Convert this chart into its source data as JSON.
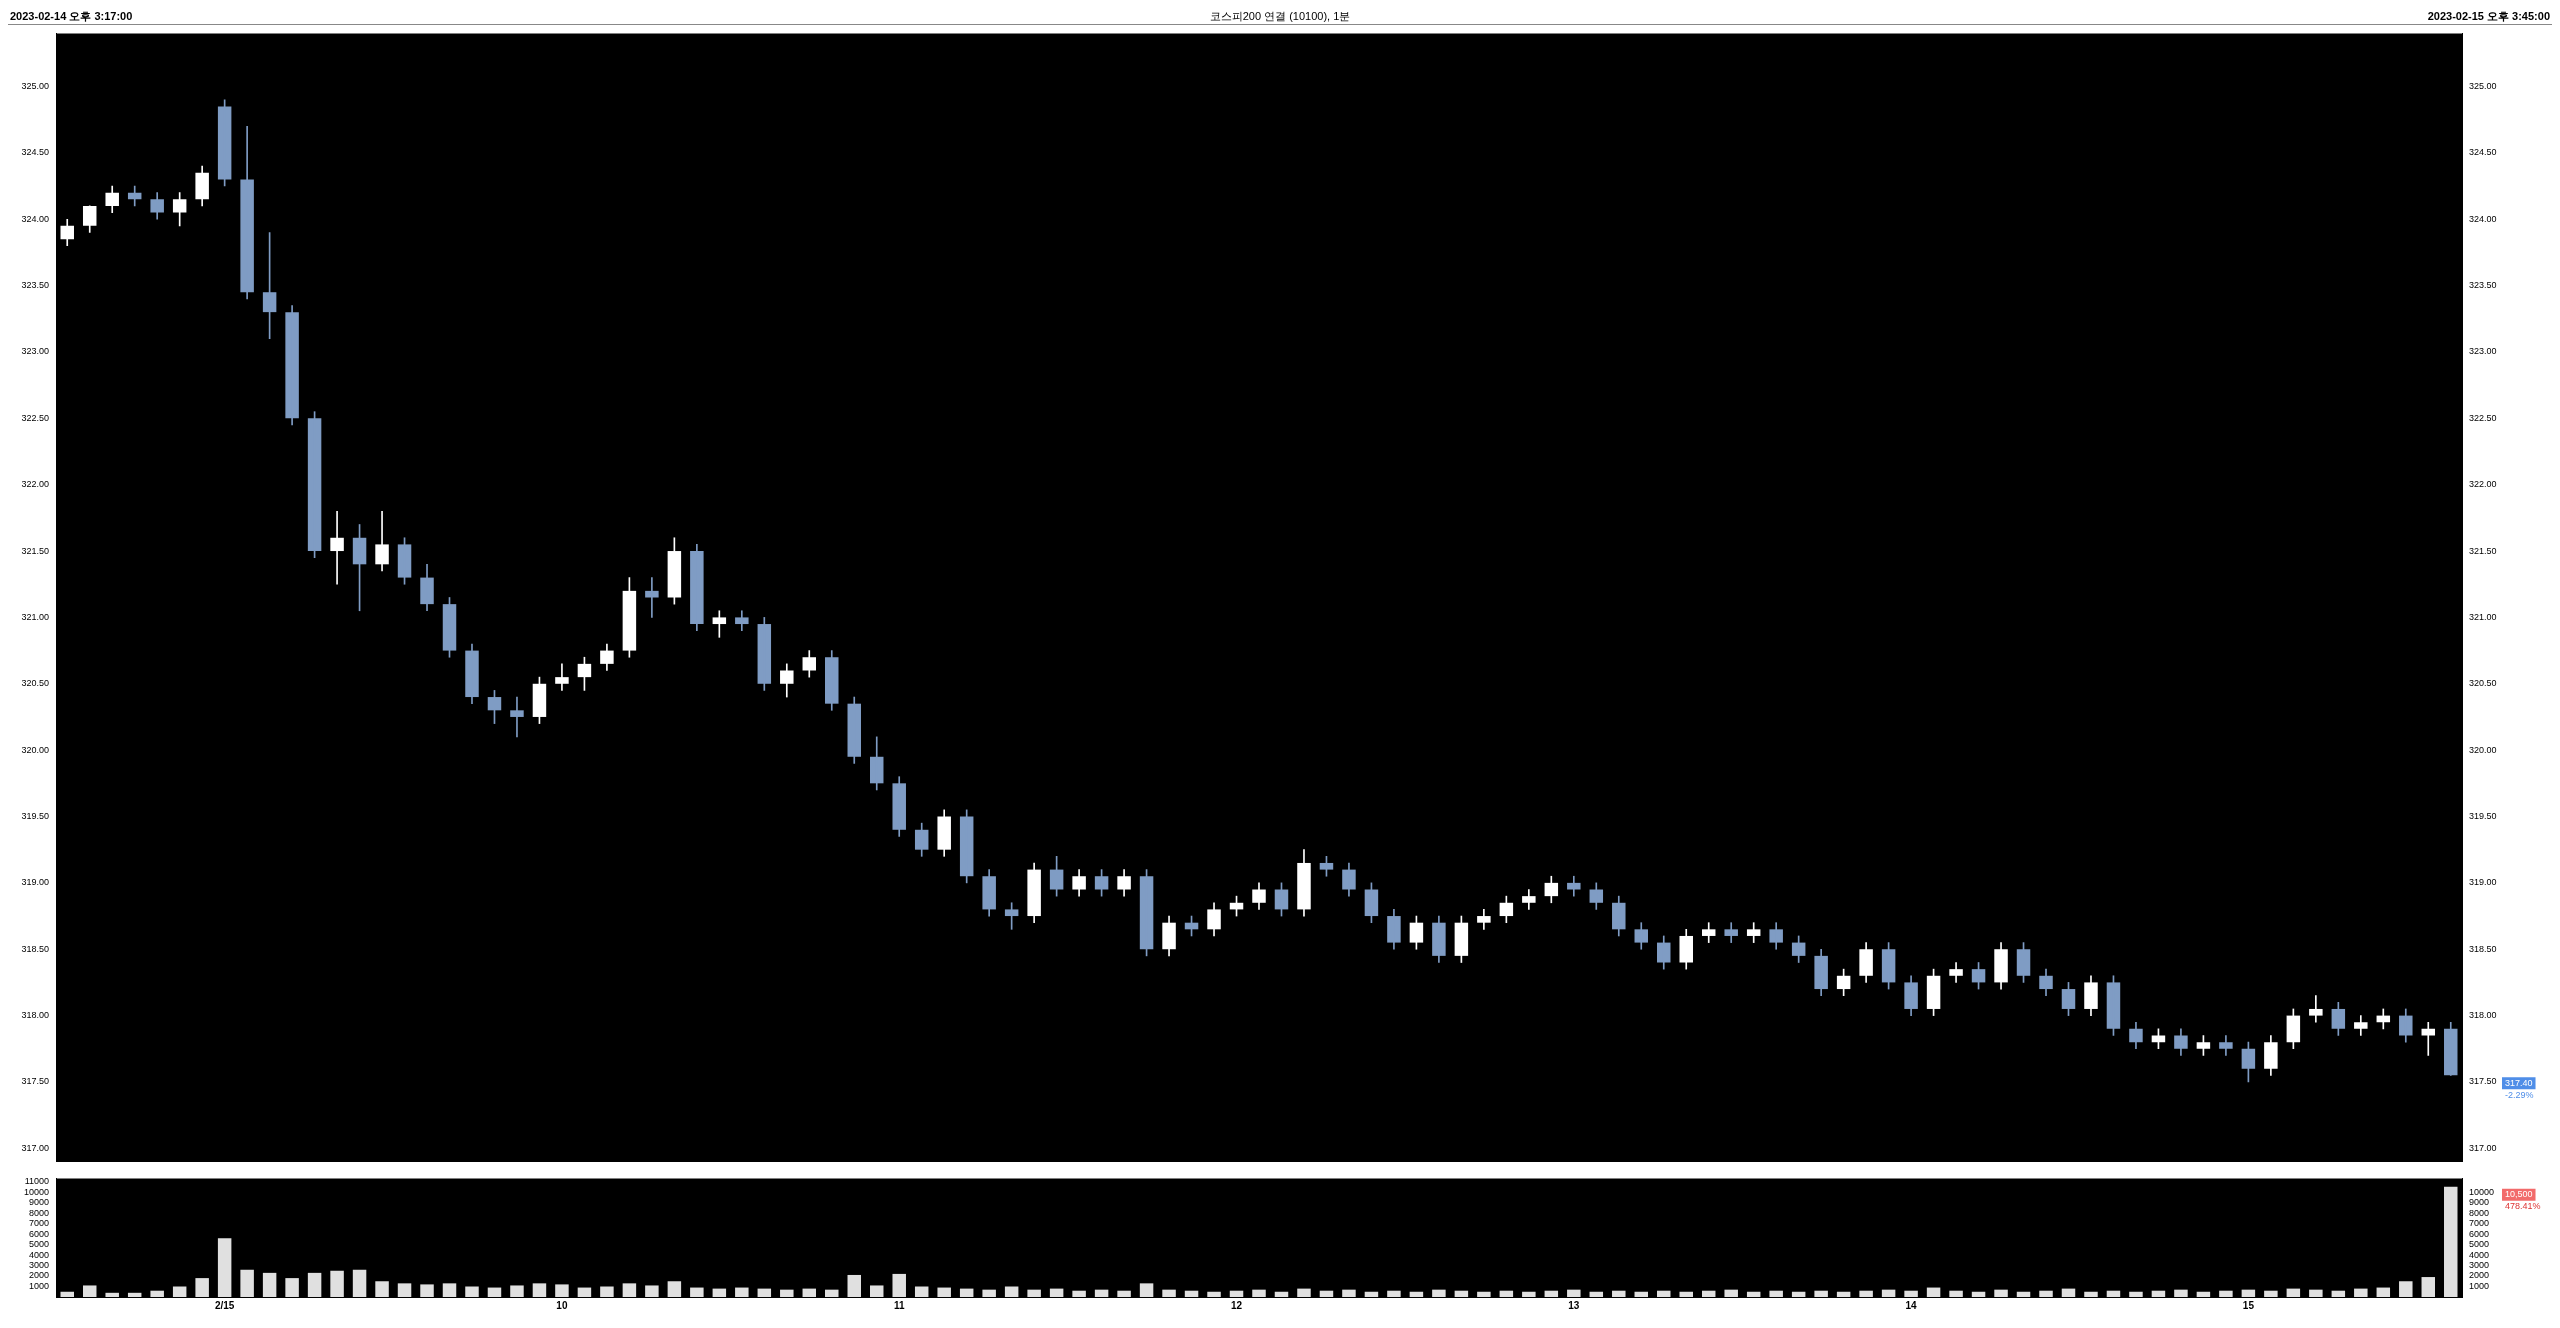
{
  "chart_data": [
    {
      "type": "candlestick",
      "title": "코스피200 연결 (10100), 1분",
      "tick_labels": "y",
      "ylim": [
        316.9,
        325.4
      ],
      "y2lim": [
        316.9,
        325.4
      ],
      "yticks": [
        {
          "value": 317,
          "label": "317.00"
        },
        {
          "value": 317.5,
          "label": "317.50"
        },
        {
          "value": 318,
          "label": "318.00"
        },
        {
          "value": 318.5,
          "label": "318.50"
        },
        {
          "value": 319,
          "label": "319.00"
        },
        {
          "value": 319.5,
          "label": "319.50"
        },
        {
          "value": 320,
          "label": "320.00"
        },
        {
          "value": 320.5,
          "label": "320.50"
        },
        {
          "value": 321,
          "label": "321.00"
        },
        {
          "value": 321.5,
          "label": "321.50"
        },
        {
          "value": 322,
          "label": "322.00"
        },
        {
          "value": 322.5,
          "label": "322.50"
        },
        {
          "value": 323,
          "label": "323.00"
        },
        {
          "value": 323.5,
          "label": "323.50"
        },
        {
          "value": 324,
          "label": "324.00"
        },
        {
          "value": 324.5,
          "label": "324.50"
        },
        {
          "value": 325,
          "label": "325.00"
        }
      ],
      "y2ticks": [
        {
          "value": 317,
          "label": "317.00"
        },
        {
          "value": 317.5,
          "label": "317.50"
        },
        {
          "value": 318,
          "label": "318.00"
        },
        {
          "value": 318.5,
          "label": "318.50"
        },
        {
          "value": 319,
          "label": "319.00"
        },
        {
          "value": 319.5,
          "label": "319.50"
        },
        {
          "value": 320,
          "label": "320.00"
        },
        {
          "value": 320.5,
          "label": "320.50"
        },
        {
          "value": 321,
          "label": "321.00"
        },
        {
          "value": 321.5,
          "label": "321.50"
        },
        {
          "value": 322,
          "label": "322.00"
        },
        {
          "value": 322.5,
          "label": "322.50"
        },
        {
          "value": 323,
          "label": "323.00"
        },
        {
          "value": 323.5,
          "label": "323.50"
        },
        {
          "value": 324,
          "label": "324.00"
        },
        {
          "value": 324.5,
          "label": "324.50"
        },
        {
          "value": 325,
          "label": "325.00"
        }
      ],
      "annotations": [
        "2023-02-14 오후 3:17:00",
        "2023-02-15 오후 3:45:00",
        "317.40",
        "-2.29%"
      ],
      "categories": [
        null,
        null,
        null,
        null,
        null,
        null,
        null,
        null,
        null,
        null,
        null,
        null,
        null,
        null,
        null,
        null,
        null,
        null,
        null,
        null,
        null,
        null,
        null,
        null,
        null,
        null,
        null,
        null,
        null,
        null,
        null,
        null,
        null,
        null,
        null,
        null,
        null,
        null,
        null,
        null,
        null,
        null,
        null,
        null,
        null,
        null,
        null,
        null,
        null,
        null,
        null,
        null,
        null,
        null,
        null,
        null,
        null,
        null,
        null,
        null,
        null,
        null,
        null,
        null,
        null,
        null,
        null,
        null,
        null,
        null,
        null,
        null,
        null,
        null,
        null,
        null,
        null,
        null,
        null,
        null,
        null,
        null,
        null,
        null,
        null,
        null,
        null,
        null,
        null,
        null,
        null,
        null,
        null,
        null,
        null,
        null,
        null,
        null,
        null,
        null,
        null,
        null,
        null,
        null,
        null,
        null,
        null
      ],
      "ohlc": [
        [
          323.85,
          324.0,
          323.8,
          323.95
        ],
        [
          323.95,
          324.1,
          323.9,
          324.1
        ],
        [
          324.1,
          324.25,
          324.05,
          324.2
        ],
        [
          324.2,
          324.25,
          324.1,
          324.15
        ],
        [
          324.15,
          324.2,
          324.0,
          324.05
        ],
        [
          324.05,
          324.2,
          323.95,
          324.15
        ],
        [
          324.15,
          324.4,
          324.1,
          324.35
        ],
        [
          324.85,
          324.9,
          324.25,
          324.3
        ],
        [
          324.3,
          324.7,
          323.4,
          323.45
        ],
        [
          323.45,
          323.9,
          323.1,
          323.3
        ],
        [
          323.3,
          323.35,
          322.45,
          322.5
        ],
        [
          322.5,
          322.55,
          321.45,
          321.5
        ],
        [
          321.5,
          321.8,
          321.25,
          321.6
        ],
        [
          321.6,
          321.7,
          321.05,
          321.4
        ],
        [
          321.4,
          321.8,
          321.35,
          321.55
        ],
        [
          321.55,
          321.6,
          321.25,
          321.3
        ],
        [
          321.3,
          321.4,
          321.05,
          321.1
        ],
        [
          321.1,
          321.15,
          320.7,
          320.75
        ],
        [
          320.75,
          320.8,
          320.35,
          320.4
        ],
        [
          320.4,
          320.45,
          320.2,
          320.3
        ],
        [
          320.3,
          320.4,
          320.1,
          320.25
        ],
        [
          320.25,
          320.55,
          320.2,
          320.5
        ],
        [
          320.5,
          320.65,
          320.45,
          320.55
        ],
        [
          320.55,
          320.7,
          320.45,
          320.65
        ],
        [
          320.65,
          320.8,
          320.6,
          320.75
        ],
        [
          320.75,
          321.3,
          320.7,
          321.2
        ],
        [
          321.2,
          321.3,
          321.0,
          321.15
        ],
        [
          321.15,
          321.6,
          321.1,
          321.5
        ],
        [
          321.5,
          321.55,
          320.9,
          320.95
        ],
        [
          320.95,
          321.05,
          320.85,
          321.0
        ],
        [
          321.0,
          321.05,
          320.9,
          320.95
        ],
        [
          320.95,
          321.0,
          320.45,
          320.5
        ],
        [
          320.5,
          320.65,
          320.4,
          320.6
        ],
        [
          320.6,
          320.75,
          320.55,
          320.7
        ],
        [
          320.7,
          320.75,
          320.3,
          320.35
        ],
        [
          320.35,
          320.4,
          319.9,
          319.95
        ],
        [
          319.95,
          320.1,
          319.7,
          319.75
        ],
        [
          319.75,
          319.8,
          319.35,
          319.4
        ],
        [
          319.4,
          319.45,
          319.2,
          319.25
        ],
        [
          319.25,
          319.55,
          319.2,
          319.5
        ],
        [
          319.5,
          319.55,
          319.0,
          319.05
        ],
        [
          319.05,
          319.1,
          318.75,
          318.8
        ],
        [
          318.8,
          318.85,
          318.65,
          318.75
        ],
        [
          318.75,
          319.15,
          318.7,
          319.1
        ],
        [
          319.1,
          319.2,
          318.9,
          318.95
        ],
        [
          318.95,
          319.1,
          318.9,
          319.05
        ],
        [
          319.05,
          319.1,
          318.9,
          318.95
        ],
        [
          318.95,
          319.1,
          318.9,
          319.05
        ],
        [
          319.05,
          319.1,
          318.45,
          318.5
        ],
        [
          318.5,
          318.75,
          318.45,
          318.7
        ],
        [
          318.7,
          318.75,
          318.6,
          318.65
        ],
        [
          318.65,
          318.85,
          318.6,
          318.8
        ],
        [
          318.8,
          318.9,
          318.75,
          318.85
        ],
        [
          318.85,
          319.0,
          318.8,
          318.95
        ],
        [
          318.95,
          319.0,
          318.75,
          318.8
        ],
        [
          318.8,
          319.25,
          318.75,
          319.15
        ],
        [
          319.15,
          319.2,
          319.05,
          319.1
        ],
        [
          319.1,
          319.15,
          318.9,
          318.95
        ],
        [
          318.95,
          319.0,
          318.7,
          318.75
        ],
        [
          318.75,
          318.8,
          318.5,
          318.55
        ],
        [
          318.55,
          318.75,
          318.5,
          318.7
        ],
        [
          318.7,
          318.75,
          318.4,
          318.45
        ],
        [
          318.45,
          318.75,
          318.4,
          318.7
        ],
        [
          318.7,
          318.8,
          318.65,
          318.75
        ],
        [
          318.75,
          318.9,
          318.7,
          318.85
        ],
        [
          318.85,
          318.95,
          318.8,
          318.9
        ],
        [
          318.9,
          319.05,
          318.85,
          319.0
        ],
        [
          319.0,
          319.05,
          318.9,
          318.95
        ],
        [
          318.95,
          319.0,
          318.8,
          318.85
        ],
        [
          318.85,
          318.9,
          318.6,
          318.65
        ],
        [
          318.65,
          318.7,
          318.5,
          318.55
        ],
        [
          318.55,
          318.6,
          318.35,
          318.4
        ],
        [
          318.4,
          318.65,
          318.35,
          318.6
        ],
        [
          318.6,
          318.7,
          318.55,
          318.65
        ],
        [
          318.65,
          318.7,
          318.55,
          318.6
        ],
        [
          318.6,
          318.7,
          318.55,
          318.65
        ],
        [
          318.65,
          318.7,
          318.5,
          318.55
        ],
        [
          318.55,
          318.6,
          318.4,
          318.45
        ],
        [
          318.45,
          318.5,
          318.15,
          318.2
        ],
        [
          318.2,
          318.35,
          318.15,
          318.3
        ],
        [
          318.3,
          318.55,
          318.25,
          318.5
        ],
        [
          318.5,
          318.55,
          318.2,
          318.25
        ],
        [
          318.25,
          318.3,
          318.0,
          318.05
        ],
        [
          318.05,
          318.35,
          318.0,
          318.3
        ],
        [
          318.3,
          318.4,
          318.25,
          318.35
        ],
        [
          318.35,
          318.4,
          318.2,
          318.25
        ],
        [
          318.25,
          318.55,
          318.2,
          318.5
        ],
        [
          318.5,
          318.55,
          318.25,
          318.3
        ],
        [
          318.3,
          318.35,
          318.15,
          318.2
        ],
        [
          318.2,
          318.25,
          318.0,
          318.05
        ],
        [
          318.05,
          318.3,
          318.0,
          318.25
        ],
        [
          318.25,
          318.3,
          317.85,
          317.9
        ],
        [
          317.9,
          317.95,
          317.75,
          317.8
        ],
        [
          317.8,
          317.9,
          317.75,
          317.85
        ],
        [
          317.85,
          317.9,
          317.7,
          317.75
        ],
        [
          317.75,
          317.85,
          317.7,
          317.8
        ],
        [
          317.8,
          317.85,
          317.7,
          317.75
        ],
        [
          317.75,
          317.8,
          317.5,
          317.6
        ],
        [
          317.6,
          317.85,
          317.55,
          317.8
        ],
        [
          317.8,
          318.05,
          317.75,
          318.0
        ],
        [
          318.0,
          318.15,
          317.95,
          318.05
        ],
        [
          318.05,
          318.1,
          317.85,
          317.9
        ],
        [
          317.9,
          318.0,
          317.85,
          317.95
        ],
        [
          317.95,
          318.05,
          317.9,
          318.0
        ],
        [
          318.0,
          318.05,
          317.8,
          317.85
        ],
        [
          317.85,
          317.95,
          317.7,
          317.9
        ],
        [
          317.9,
          317.95,
          317.55,
          317.55
        ]
      ],
      "colors": [
        "#ffffff",
        "#ffffff",
        "#ffffff",
        "#7f9cc4",
        "#7f9cc4",
        "#ffffff",
        "#ffffff",
        "#7f9cc4",
        "#7f9cc4",
        "#7f9cc4",
        "#7f9cc4",
        "#7f9cc4",
        "#ffffff",
        "#7f9cc4",
        "#ffffff",
        "#7f9cc4",
        "#7f9cc4",
        "#7f9cc4",
        "#7f9cc4",
        "#7f9cc4",
        "#7f9cc4",
        "#ffffff",
        "#ffffff",
        "#ffffff",
        "#ffffff",
        "#ffffff",
        "#7f9cc4",
        "#ffffff",
        "#7f9cc4",
        "#ffffff",
        "#7f9cc4",
        "#7f9cc4",
        "#ffffff",
        "#ffffff",
        "#7f9cc4",
        "#7f9cc4",
        "#7f9cc4",
        "#7f9cc4",
        "#7f9cc4",
        "#ffffff",
        "#7f9cc4",
        "#7f9cc4",
        "#7f9cc4",
        "#ffffff",
        "#7f9cc4",
        "#ffffff",
        "#7f9cc4",
        "#ffffff",
        "#7f9cc4",
        "#ffffff",
        "#7f9cc4",
        "#ffffff",
        "#ffffff",
        "#ffffff",
        "#7f9cc4",
        "#ffffff",
        "#7f9cc4",
        "#7f9cc4",
        "#7f9cc4",
        "#7f9cc4",
        "#ffffff",
        "#7f9cc4",
        "#ffffff",
        "#ffffff",
        "#ffffff",
        "#ffffff",
        "#ffffff",
        "#7f9cc4",
        "#7f9cc4",
        "#7f9cc4",
        "#7f9cc4",
        "#7f9cc4",
        "#ffffff",
        "#ffffff",
        "#7f9cc4",
        "#ffffff",
        "#7f9cc4",
        "#7f9cc4",
        "#7f9cc4",
        "#ffffff",
        "#ffffff",
        "#7f9cc4",
        "#7f9cc4",
        "#ffffff",
        "#ffffff",
        "#7f9cc4",
        "#ffffff",
        "#7f9cc4",
        "#7f9cc4",
        "#7f9cc4",
        "#ffffff",
        "#7f9cc4",
        "#7f9cc4",
        "#ffffff",
        "#7f9cc4",
        "#ffffff",
        "#7f9cc4",
        "#7f9cc4",
        "#ffffff",
        "#ffffff",
        "#ffffff",
        "#7f9cc4",
        "#ffffff",
        "#ffffff",
        "#7f9cc4",
        "#ffffff",
        "#7f9cc4"
      ]
    },
    {
      "type": "bar",
      "color": "#e0e0e0",
      "ylim": [
        0,
        11300
      ],
      "yticks": [
        1000,
        2000,
        3000,
        4000,
        5000,
        6000,
        7000,
        8000,
        9000,
        10000,
        11000
      ],
      "y2lim": [
        0,
        11300
      ],
      "y2ticks": [
        1000,
        2000,
        3000,
        4000,
        5000,
        6000,
        7000,
        8000,
        9000,
        10000
      ],
      "annotations": [
        "10,500",
        "478.41%"
      ],
      "categories": [
        null,
        null,
        null,
        null,
        null,
        null,
        null,
        "2/15",
        null,
        null,
        null,
        null,
        null,
        null,
        null,
        null,
        null,
        null,
        null,
        null,
        null,
        null,
        "10",
        null,
        null,
        null,
        null,
        null,
        null,
        null,
        null,
        null,
        null,
        null,
        null,
        null,
        null,
        "11",
        null,
        null,
        null,
        null,
        null,
        null,
        null,
        null,
        null,
        null,
        null,
        null,
        null,
        null,
        "12",
        null,
        null,
        null,
        null,
        null,
        null,
        null,
        null,
        null,
        null,
        null,
        null,
        null,
        null,
        "13",
        null,
        null,
        null,
        null,
        null,
        null,
        null,
        null,
        null,
        null,
        null,
        null,
        null,
        null,
        "14",
        null,
        null,
        null,
        null,
        null,
        null,
        null,
        null,
        null,
        null,
        null,
        null,
        null,
        null,
        "15",
        null,
        null,
        null,
        null,
        null,
        null,
        null,
        null,
        null
      ],
      "values": [
        500,
        1100,
        400,
        400,
        600,
        1000,
        1800,
        5600,
        2600,
        2300,
        1800,
        2300,
        2500,
        2600,
        1500,
        1300,
        1200,
        1300,
        1000,
        900,
        1100,
        1300,
        1200,
        900,
        1000,
        1300,
        1100,
        1500,
        900,
        800,
        900,
        800,
        700,
        800,
        700,
        2100,
        1100,
        2200,
        1000,
        900,
        800,
        700,
        1000,
        700,
        800,
        600,
        700,
        600,
        1300,
        700,
        600,
        500,
        600,
        700,
        500,
        800,
        600,
        700,
        500,
        600,
        500,
        700,
        600,
        500,
        600,
        500,
        600,
        700,
        500,
        600,
        500,
        600,
        500,
        600,
        700,
        500,
        600,
        500,
        600,
        500,
        600,
        700,
        600,
        900,
        600,
        500,
        700,
        500,
        600,
        800,
        500,
        600,
        500,
        600,
        700,
        500,
        600,
        700,
        600,
        800,
        700,
        600,
        800,
        900,
        1500,
        1900,
        10500
      ]
    }
  ]
}
